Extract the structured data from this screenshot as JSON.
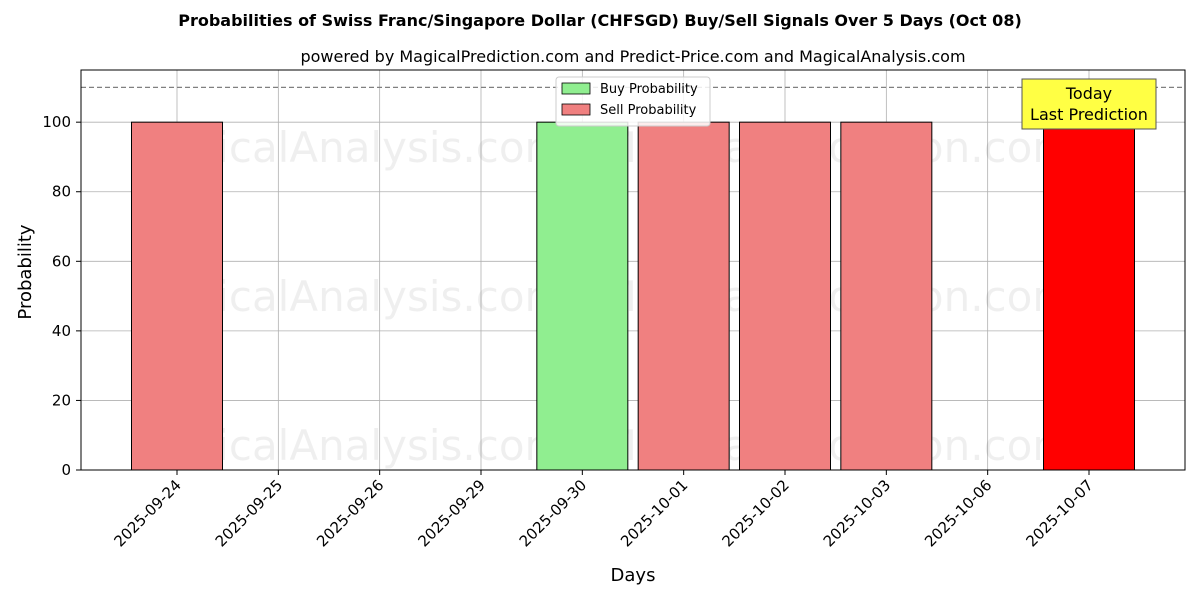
{
  "chart_data": {
    "type": "bar",
    "title": "Probabilities of Swiss Franc/Singapore Dollar (CHFSGD) Buy/Sell Signals Over 5 Days (Oct 08)",
    "subtitle": "powered by MagicalPrediction.com and Predict-Price.com and MagicalAnalysis.com",
    "xlabel": "Days",
    "ylabel": "Probability",
    "ylim": [
      0,
      115
    ],
    "yticks": [
      "0",
      "20",
      "40",
      "60",
      "80",
      "100"
    ],
    "reference_line": 110,
    "grid": true,
    "legend_position": "top-center",
    "categories": [
      "2025-09-24",
      "2025-09-25",
      "2025-09-26",
      "2025-09-29",
      "2025-09-30",
      "2025-10-01",
      "2025-10-02",
      "2025-10-03",
      "2025-10-06",
      "2025-10-07"
    ],
    "series": [
      {
        "name": "Buy Probability",
        "color": "#90ee90",
        "values": [
          0,
          0,
          0,
          0,
          100,
          0,
          0,
          0,
          0,
          0
        ]
      },
      {
        "name": "Sell Probability",
        "color": "#f08080",
        "values": [
          100,
          0,
          0,
          0,
          0,
          100,
          100,
          100,
          0,
          100
        ]
      }
    ],
    "highlight": {
      "category": "2025-10-07",
      "color": "#ff0000"
    },
    "annotation": {
      "line1": "Today",
      "line2": "Last Prediction",
      "color": "#ffff44"
    },
    "watermarks": [
      "MagicalAnalysis.com",
      "MagicalPrediction.com"
    ]
  }
}
